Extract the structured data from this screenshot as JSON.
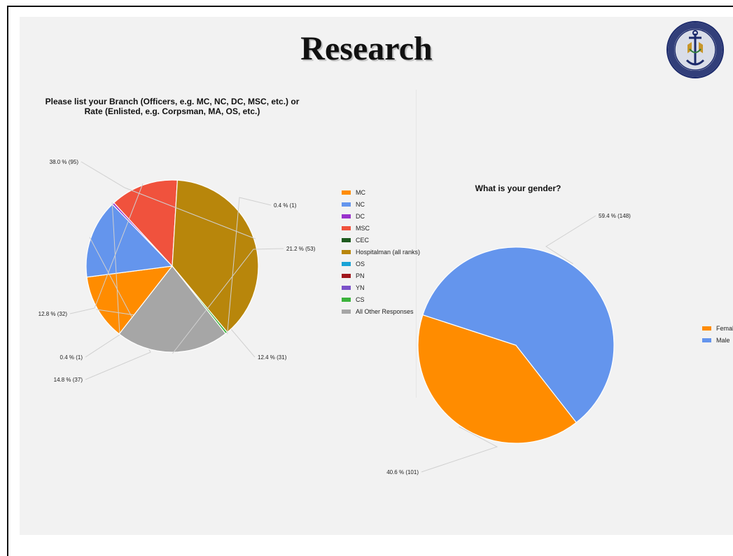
{
  "slide": {
    "title": "Research",
    "logo": {
      "icon": "naval-hospital-seal",
      "top_text": "U.S. NAVAL HOSPITAL",
      "bottom_text": "OKINAWA, JAPAN"
    }
  },
  "chart_data": [
    {
      "type": "pie",
      "title_lines": [
        "Please list your Branch (Officers, e.g. MC, NC, DC, MSC, etc.) or",
        "Rate (Enlisted, e.g. Corpsman, MA, OS, etc.)"
      ],
      "legend_position": "right",
      "slices": [
        {
          "name": "MC",
          "value": 31,
          "label": "12.4 % (31)",
          "color": "#ff8c00"
        },
        {
          "name": "NC",
          "value": 37,
          "label": "14.8 % (37)",
          "color": "#6495ed"
        },
        {
          "name": "DC",
          "value": 1,
          "label": "0.4 % (1)",
          "color": "#9932cc"
        },
        {
          "name": "MSC",
          "value": 32,
          "label": "12.8 % (32)",
          "color": "#f0523d"
        },
        {
          "name": "CEC",
          "value": 0,
          "label": "",
          "color": "#1e5b1e"
        },
        {
          "name": "Hospitalman (all ranks)",
          "value": 95,
          "label": "38.0 % (95)",
          "color": "#b8860b"
        },
        {
          "name": "OS",
          "value": 0,
          "label": "",
          "color": "#1aa3d6"
        },
        {
          "name": "PN",
          "value": 0,
          "label": "",
          "color": "#a0171d"
        },
        {
          "name": "YN",
          "value": 0,
          "label": "",
          "color": "#7b52c9"
        },
        {
          "name": "CS",
          "value": 1,
          "label": "0.4 % (1)",
          "color": "#3cb33c"
        },
        {
          "name": "All Other Responses",
          "value": 53,
          "label": "21.2 % (53)",
          "color": "#a6a6a6"
        }
      ]
    },
    {
      "type": "pie",
      "title_lines": [
        "What is your gender?"
      ],
      "legend_position": "right",
      "slices": [
        {
          "name": "Femal",
          "value": 101,
          "label": "40.6 % (101)",
          "color": "#ff8c00"
        },
        {
          "name": "Male",
          "value": 148,
          "label": "59.4 % (148)",
          "color": "#6495ed"
        }
      ]
    }
  ]
}
